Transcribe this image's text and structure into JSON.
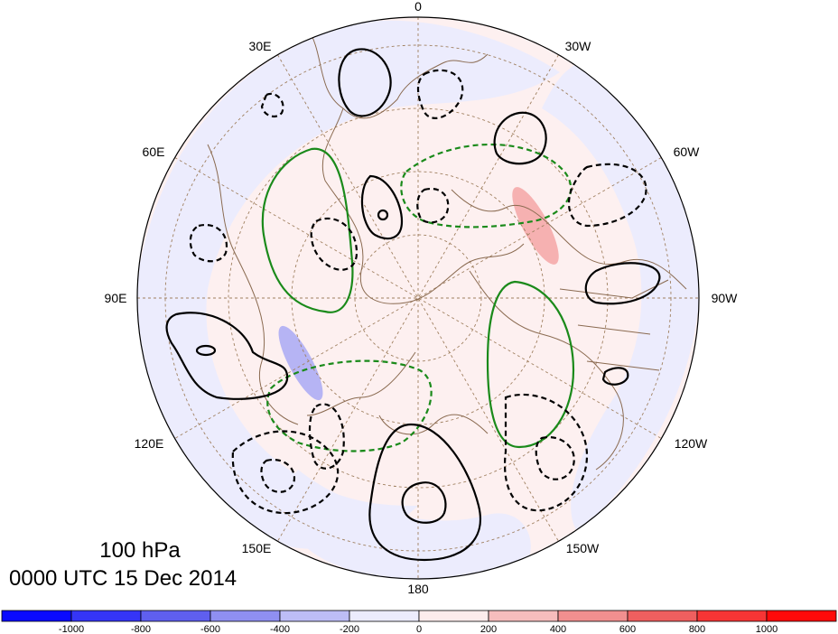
{
  "map": {
    "level_label": "100 hPa",
    "time_label": "0000 UTC 15 Dec 2014",
    "longitude_labels": {
      "lon_0": "0",
      "lon_30e": "30E",
      "lon_30w": "30W",
      "lon_60e": "60E",
      "lon_60w": "60W",
      "lon_90e": "90E",
      "lon_90w": "90W",
      "lon_120e": "120E",
      "lon_120w": "120W",
      "lon_150e": "150E",
      "lon_150w": "150W",
      "lon_180": "180"
    }
  },
  "colorbar": {
    "ticks": [
      "-1000",
      "-800",
      "-600",
      "-400",
      "-200",
      "0",
      "200",
      "400",
      "600",
      "800",
      "1000"
    ],
    "colors": [
      "#0a0aff",
      "#3535f7",
      "#5f5fef",
      "#8f8ff1",
      "#bdbdf6",
      "#ececfd",
      "#fdecec",
      "#f6bdbd",
      "#f18f8f",
      "#ef5f5f",
      "#f73535",
      "#ff0a0a"
    ]
  },
  "colors": {
    "positive_anomaly_fill": "#f4a6a6",
    "negative_anomaly_fill": "#a9a9f5",
    "contour_black": "#000000",
    "contour_green": "#1a8a1a",
    "coastline": "#8a6a50",
    "graticule": "#a08060"
  }
}
